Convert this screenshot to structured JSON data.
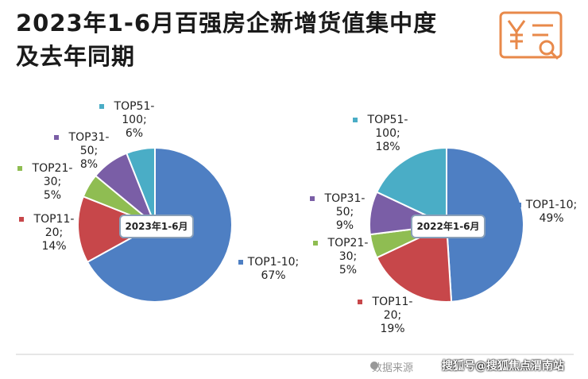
{
  "title": "2023年1-6月百强房企新增货值集中度及去年同期",
  "chart_data": [
    {
      "type": "pie",
      "center_label": "2023年1-6月",
      "categories": [
        "TOP1-10;",
        "TOP11-20;",
        "TOP21-30;",
        "TOP31-50;",
        "TOP51-100;"
      ],
      "values": [
        67,
        14,
        5,
        8,
        6
      ],
      "value_labels": [
        "67%",
        "14%",
        "5%",
        "8%",
        "6%"
      ],
      "colors": [
        "#4e7fc3",
        "#c7474a",
        "#8fbd52",
        "#7a5ea6",
        "#4aadc6"
      ]
    },
    {
      "type": "pie",
      "center_label": "2022年1-6月",
      "categories": [
        "TOP1-10;",
        "TOP11-20;",
        "TOP21-30;",
        "TOP31-50;",
        "TOP51-100;"
      ],
      "values": [
        49,
        19,
        5,
        9,
        18
      ],
      "value_labels": [
        "49%",
        "19%",
        "5%",
        "9%",
        "18%"
      ],
      "colors": [
        "#4e7fc3",
        "#c7474a",
        "#8fbd52",
        "#7a5ea6",
        "#4aadc6"
      ]
    }
  ],
  "footer": {
    "source": "数据来源",
    "watermark": "搜狐号@搜狐焦点渭南站"
  }
}
